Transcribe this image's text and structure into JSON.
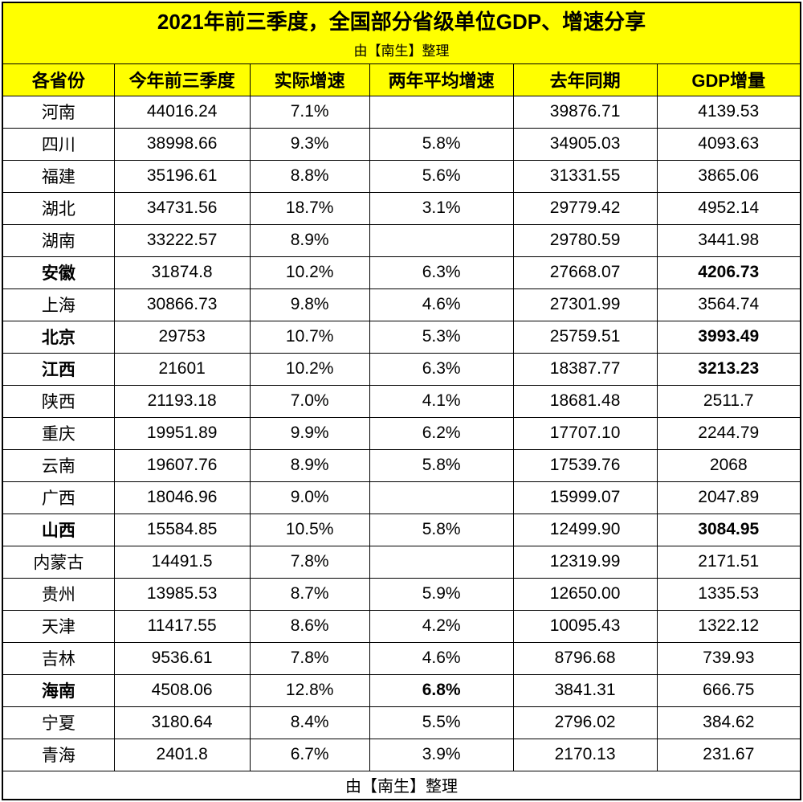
{
  "title": {
    "main": "2021年前三季度，全国部分省级单位GDP、增速分享",
    "sub": "由【南生】整理"
  },
  "footer": "由【南生】整理",
  "colors": {
    "header_bg": "#ffff00",
    "border": "#000000",
    "text": "#000000",
    "background": "#ffffff"
  },
  "table": {
    "columns": [
      "各省份",
      "今年前三季度",
      "实际增速",
      "两年平均增速",
      "去年同期",
      "GDP增量"
    ],
    "column_widths_pct": [
      14,
      17,
      15,
      18,
      18,
      18
    ],
    "header_fontsize": 22,
    "cell_fontsize": 21,
    "title_fontsize": 26,
    "subtitle_fontsize": 17,
    "rows": [
      {
        "province": "河南",
        "q3": "44016.24",
        "growth": "7.1%",
        "avg2y": "",
        "lastyear": "39876.71",
        "inc": "4139.53",
        "bold_cols": []
      },
      {
        "province": "四川",
        "q3": "38998.66",
        "growth": "9.3%",
        "avg2y": "5.8%",
        "lastyear": "34905.03",
        "inc": "4093.63",
        "bold_cols": []
      },
      {
        "province": "福建",
        "q3": "35196.61",
        "growth": "8.8%",
        "avg2y": "5.6%",
        "lastyear": "31331.55",
        "inc": "3865.06",
        "bold_cols": []
      },
      {
        "province": "湖北",
        "q3": "34731.56",
        "growth": "18.7%",
        "avg2y": "3.1%",
        "lastyear": "29779.42",
        "inc": "4952.14",
        "bold_cols": []
      },
      {
        "province": "湖南",
        "q3": "33222.57",
        "growth": "8.9%",
        "avg2y": "",
        "lastyear": "29780.59",
        "inc": "3441.98",
        "bold_cols": []
      },
      {
        "province": "安徽",
        "q3": "31874.8",
        "growth": "10.2%",
        "avg2y": "6.3%",
        "lastyear": "27668.07",
        "inc": "4206.73",
        "bold_cols": [
          0,
          5
        ]
      },
      {
        "province": "上海",
        "q3": "30866.73",
        "growth": "9.8%",
        "avg2y": "4.6%",
        "lastyear": "27301.99",
        "inc": "3564.74",
        "bold_cols": []
      },
      {
        "province": "北京",
        "q3": "29753",
        "growth": "10.7%",
        "avg2y": "5.3%",
        "lastyear": "25759.51",
        "inc": "3993.49",
        "bold_cols": [
          0,
          5
        ]
      },
      {
        "province": "江西",
        "q3": "21601",
        "growth": "10.2%",
        "avg2y": "6.3%",
        "lastyear": "18387.77",
        "inc": "3213.23",
        "bold_cols": [
          0,
          5
        ]
      },
      {
        "province": "陕西",
        "q3": "21193.18",
        "growth": "7.0%",
        "avg2y": "4.1%",
        "lastyear": "18681.48",
        "inc": "2511.7",
        "bold_cols": []
      },
      {
        "province": "重庆",
        "q3": "19951.89",
        "growth": "9.9%",
        "avg2y": "6.2%",
        "lastyear": "17707.10",
        "inc": "2244.79",
        "bold_cols": []
      },
      {
        "province": "云南",
        "q3": "19607.76",
        "growth": "8.9%",
        "avg2y": "5.8%",
        "lastyear": "17539.76",
        "inc": "2068",
        "bold_cols": []
      },
      {
        "province": "广西",
        "q3": "18046.96",
        "growth": "9.0%",
        "avg2y": "",
        "lastyear": "15999.07",
        "inc": "2047.89",
        "bold_cols": []
      },
      {
        "province": "山西",
        "q3": "15584.85",
        "growth": "10.5%",
        "avg2y": "5.8%",
        "lastyear": "12499.90",
        "inc": "3084.95",
        "bold_cols": [
          0,
          5
        ]
      },
      {
        "province": "内蒙古",
        "q3": "14491.5",
        "growth": "7.8%",
        "avg2y": "",
        "lastyear": "12319.99",
        "inc": "2171.51",
        "bold_cols": []
      },
      {
        "province": "贵州",
        "q3": "13985.53",
        "growth": "8.7%",
        "avg2y": "5.9%",
        "lastyear": "12650.00",
        "inc": "1335.53",
        "bold_cols": []
      },
      {
        "province": "天津",
        "q3": "11417.55",
        "growth": "8.6%",
        "avg2y": "4.2%",
        "lastyear": "10095.43",
        "inc": "1322.12",
        "bold_cols": []
      },
      {
        "province": "吉林",
        "q3": "9536.61",
        "growth": "7.8%",
        "avg2y": "4.6%",
        "lastyear": "8796.68",
        "inc": "739.93",
        "bold_cols": []
      },
      {
        "province": "海南",
        "q3": "4508.06",
        "growth": "12.8%",
        "avg2y": "6.8%",
        "lastyear": "3841.31",
        "inc": "666.75",
        "bold_cols": [
          0,
          3
        ]
      },
      {
        "province": "宁夏",
        "q3": "3180.64",
        "growth": "8.4%",
        "avg2y": "5.5%",
        "lastyear": "2796.02",
        "inc": "384.62",
        "bold_cols": []
      },
      {
        "province": "青海",
        "q3": "2401.8",
        "growth": "6.7%",
        "avg2y": "3.9%",
        "lastyear": "2170.13",
        "inc": "231.67",
        "bold_cols": []
      }
    ]
  }
}
